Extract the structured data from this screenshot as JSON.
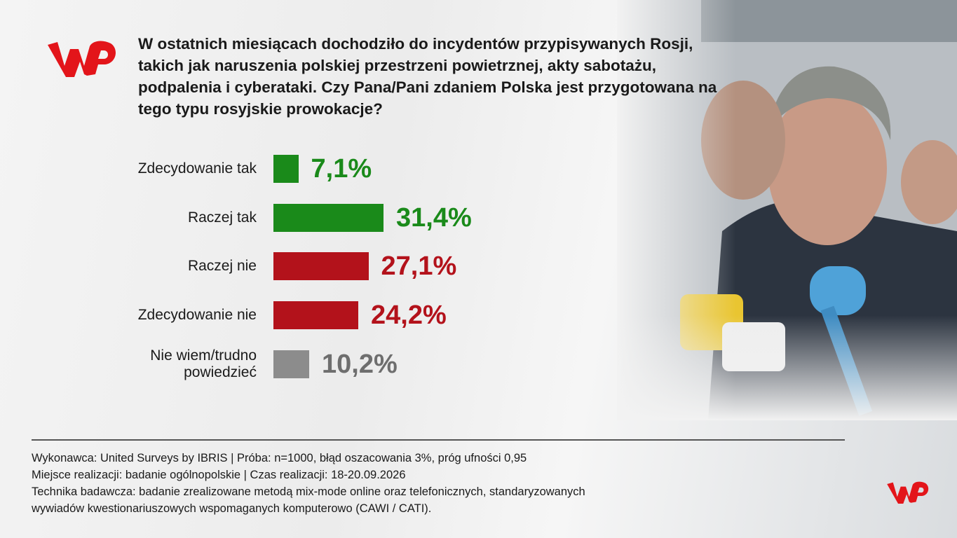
{
  "chart_data": {
    "type": "hbar",
    "title": "W ostatnich miesiącach dochodziło do incydentów przypisywanych Rosji, takich jak naruszenia polskiej przestrzeni powietrznej, akty sabotażu, podpalenia i cyberataki. Czy Pana/Pani zdaniem Polska jest przygotowana na tego typu rosyjskie prowokacje?",
    "categories": [
      "Zdecydowanie tak",
      "Raczej tak",
      "Raczej nie",
      "Zdecydowanie nie",
      "Nie wiem/trudno powiedzieć"
    ],
    "values": [
      7.1,
      31.4,
      27.1,
      24.2,
      10.2
    ],
    "value_labels": [
      "7,1%",
      "31,4%",
      "27,1%",
      "24,2%",
      "10,2%"
    ],
    "colors": [
      "#1a8a1a",
      "#1a8a1a",
      "#b3121b",
      "#b3121b",
      "#8c8c8c"
    ],
    "label_colors": [
      "#1a8a1a",
      "#1a8a1a",
      "#b3121b",
      "#b3121b",
      "#6e6e6e"
    ],
    "notes": [
      "Wykonawca: United Surveys by IBRIS | Próba: n=1000, błąd oszacowania 3%, próg ufności 0,95",
      "Miejsce realizacji: badanie ogólnopolskie | Czas realizacji: 18-20.09.2026",
      "Technika badawcza: badanie zrealizowane metodą mix-mode online oraz telefonicznych, standaryzowanych",
      "wywiadów kwestionariuszowych wspomaganych komputerowo (CAWI / CATI)."
    ]
  }
}
